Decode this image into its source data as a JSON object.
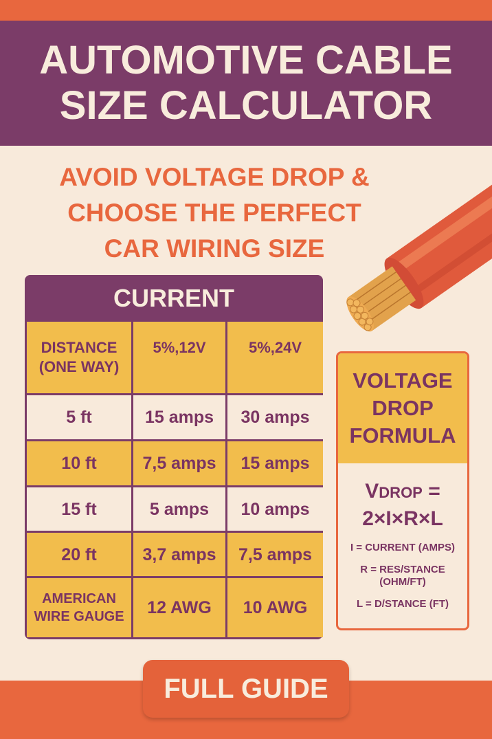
{
  "title": {
    "line1": "AUTOMOTIVE CABLE",
    "line2": "SIZE CALCULATOR"
  },
  "subtitle": {
    "line1": "AVOID VOLTAGE DROP &",
    "line2": "CHOOSE THE PERFECT",
    "line3": "CAR WIRING SIZE"
  },
  "illustration": {
    "icon": "copper-cable-icon"
  },
  "table": {
    "title": "CURRENT",
    "headers": [
      "DISTANCE (ONE WAY)",
      "5%,12V",
      "5%,24V"
    ],
    "rows": [
      [
        "5 ft",
        "15 amps",
        "30 amps"
      ],
      [
        "10 ft",
        "7,5 amps",
        "15 amps"
      ],
      [
        "15 ft",
        "5 amps",
        "10 amps"
      ],
      [
        "20 ft",
        "3,7 amps",
        "7,5 amps"
      ],
      [
        "AMERICAN WIRE GAUGE",
        "12 AWG",
        "10 AWG"
      ]
    ]
  },
  "formula": {
    "title": [
      "VOLTAGE",
      "DROP",
      "FORMULA"
    ],
    "eq_v": "V",
    "eq_sub": "DROP",
    "eq_rest": " =",
    "eq_line2": "2×I×R×L",
    "defs": [
      "I = CURRENT (AMPS)",
      "R = RES/STANCE (OHM/FT)",
      "L = D/STANCE (FT)"
    ]
  },
  "button": {
    "label": "FULL GUIDE"
  },
  "colors": {
    "purple": "#7b3c68",
    "orange": "#e8673e",
    "yellow": "#f2bd4c",
    "cream": "#f8eadb"
  }
}
